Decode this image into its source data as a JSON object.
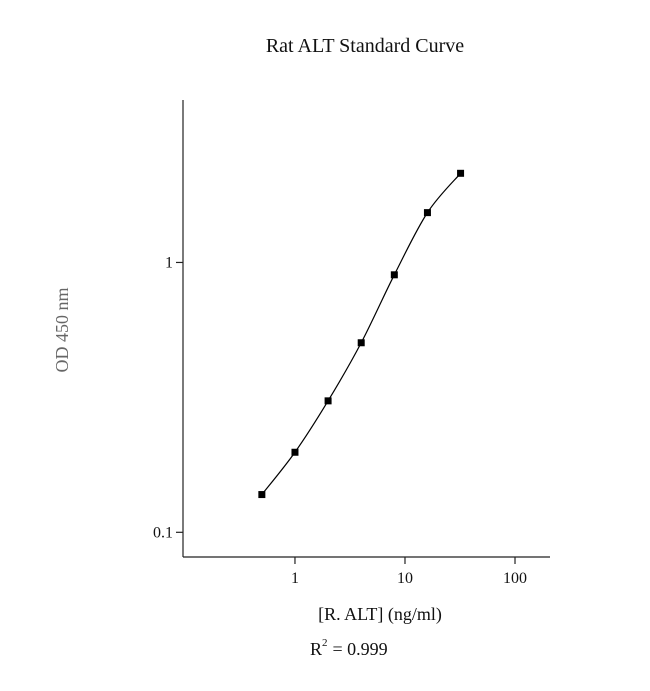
{
  "chart_data": {
    "type": "line",
    "title": "Rat ALT Standard Curve",
    "x_label": "[R. ALT] (ng/ml)",
    "y_label": "OD 450 nm",
    "annotation": {
      "base": "R",
      "superscript": "2",
      "text": "= 0.999"
    },
    "x": [
      0.5,
      1,
      2,
      4,
      8,
      16,
      32
    ],
    "series": [
      {
        "color": "#000000",
        "values": [
          0.138,
          0.198,
          0.307,
          0.504,
          0.9,
          1.53,
          2.14
        ]
      }
    ],
    "xlog": true,
    "ylog": true,
    "xlim": [
      0.096,
      208
    ],
    "ylim": [
      0.081,
      4.0
    ],
    "xticks": [
      1,
      10,
      100
    ],
    "yticks": [
      0.1,
      1
    ]
  }
}
